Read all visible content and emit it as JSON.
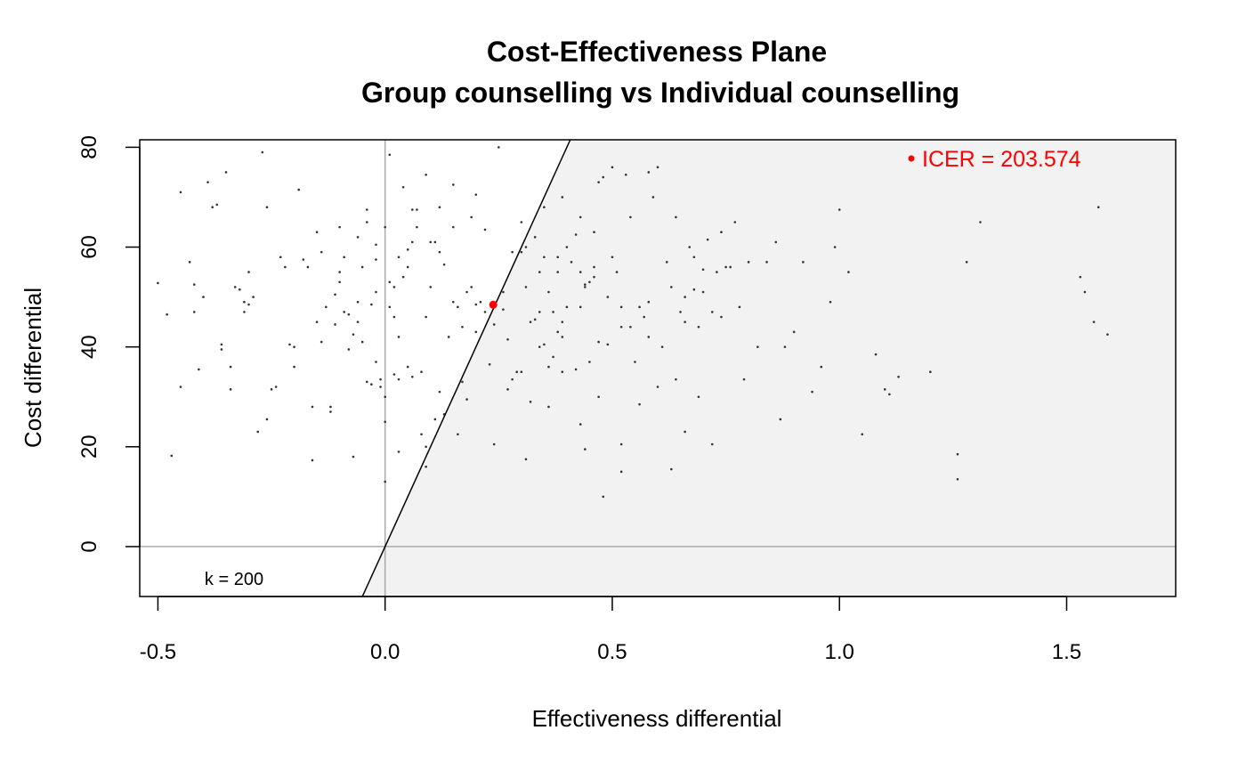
{
  "chart_data": {
    "type": "scatter",
    "title": "Cost-Effectiveness Plane",
    "subtitle": "Group counselling vs Individual counselling",
    "xlabel": "Effectiveness differential",
    "ylabel": "Cost differential",
    "xlim": [
      -0.54,
      1.74
    ],
    "ylim": [
      -10,
      81.5
    ],
    "xticks": [
      -0.5,
      0.0,
      0.5,
      1.0,
      1.5
    ],
    "xtick_labels": [
      "-0.5",
      "0.0",
      "0.5",
      "1.0",
      "1.5"
    ],
    "yticks": [
      0,
      20,
      40,
      60,
      80
    ],
    "ytick_labels": [
      "0",
      "20",
      "40",
      "60",
      "80"
    ],
    "grid": false,
    "wtp_line": {
      "k": 200,
      "label": "k = 200"
    },
    "acceptability_region_color": "#f2f2f2",
    "reference_line_color": "#aaaaaa",
    "point_color": "#333333",
    "icer": {
      "x": 0.238,
      "y": 48.45,
      "value": 203.574,
      "label": "ICER = 203.574",
      "color": "#ff0000"
    },
    "points": [
      [
        -0.5,
        52.8
      ],
      [
        -0.48,
        46.5
      ],
      [
        -0.47,
        18.2
      ],
      [
        -0.45,
        32
      ],
      [
        -0.45,
        71
      ],
      [
        -0.43,
        57
      ],
      [
        -0.42,
        52.5
      ],
      [
        -0.42,
        47
      ],
      [
        -0.41,
        35.5
      ],
      [
        -0.4,
        50
      ],
      [
        -0.39,
        73
      ],
      [
        -0.38,
        68
      ],
      [
        -0.37,
        68.5
      ],
      [
        -0.36,
        40.5
      ],
      [
        -0.36,
        39.5
      ],
      [
        -0.35,
        75
      ],
      [
        -0.34,
        31.5
      ],
      [
        -0.34,
        36
      ],
      [
        -0.33,
        52
      ],
      [
        -0.32,
        51.5
      ],
      [
        -0.31,
        47
      ],
      [
        -0.31,
        49
      ],
      [
        -0.3,
        48.5
      ],
      [
        -0.3,
        55
      ],
      [
        -0.29,
        50
      ],
      [
        -0.28,
        23
      ],
      [
        -0.27,
        79
      ],
      [
        -0.26,
        68
      ],
      [
        -0.26,
        25.5
      ],
      [
        -0.25,
        31.5
      ],
      [
        -0.24,
        32
      ],
      [
        -0.23,
        58
      ],
      [
        -0.22,
        56
      ],
      [
        -0.21,
        40.5
      ],
      [
        -0.2,
        40
      ],
      [
        -0.2,
        36
      ],
      [
        -0.19,
        71.5
      ],
      [
        -0.18,
        57.5
      ],
      [
        -0.17,
        56
      ],
      [
        -0.16,
        28
      ],
      [
        -0.16,
        17.3
      ],
      [
        -0.15,
        45
      ],
      [
        -0.15,
        63
      ],
      [
        -0.14,
        41
      ],
      [
        -0.13,
        48
      ],
      [
        -0.12,
        28
      ],
      [
        -0.12,
        27
      ],
      [
        -0.11,
        50.5
      ],
      [
        -0.11,
        44.5
      ],
      [
        -0.1,
        53
      ],
      [
        -0.1,
        55
      ],
      [
        -0.09,
        58
      ],
      [
        -0.09,
        47
      ],
      [
        -0.08,
        46.5
      ],
      [
        -0.08,
        39.5
      ],
      [
        -0.07,
        42.5
      ],
      [
        -0.07,
        18
      ],
      [
        -0.06,
        49
      ],
      [
        -0.06,
        45
      ],
      [
        -0.05,
        56
      ],
      [
        -0.05,
        41
      ],
      [
        -0.04,
        33
      ],
      [
        -0.04,
        65
      ],
      [
        -0.04,
        67.5
      ],
      [
        -0.03,
        48.5
      ],
      [
        -0.03,
        32.5
      ],
      [
        -0.02,
        37
      ],
      [
        -0.02,
        57.5
      ],
      [
        -0.01,
        33.5
      ],
      [
        -0.01,
        32
      ],
      [
        0.0,
        25
      ],
      [
        0.0,
        30
      ],
      [
        0.01,
        53
      ],
      [
        0.01,
        48
      ],
      [
        0.01,
        78.5
      ],
      [
        0.02,
        46
      ],
      [
        0.02,
        34.5
      ],
      [
        0.03,
        42
      ],
      [
        0.03,
        19
      ],
      [
        0.03,
        33.5
      ],
      [
        0.04,
        72
      ],
      [
        0.05,
        56
      ],
      [
        0.05,
        59.5
      ],
      [
        0.05,
        36
      ],
      [
        0.06,
        34
      ],
      [
        0.06,
        67.5
      ],
      [
        0.07,
        67.5
      ],
      [
        0.07,
        64
      ],
      [
        0.08,
        35
      ],
      [
        0.08,
        22.5
      ],
      [
        0.09,
        20
      ],
      [
        0.09,
        74.5
      ],
      [
        0.1,
        52
      ],
      [
        0.1,
        61
      ],
      [
        0.11,
        61
      ],
      [
        0.12,
        59
      ],
      [
        0.12,
        68
      ],
      [
        0.13,
        56.5
      ],
      [
        0.14,
        42
      ],
      [
        0.15,
        49
      ],
      [
        0.15,
        72.5
      ],
      [
        0.16,
        48
      ],
      [
        0.17,
        44
      ],
      [
        0.18,
        51
      ],
      [
        0.19,
        52
      ],
      [
        0.2,
        43
      ],
      [
        0.2,
        48.5
      ],
      [
        0.21,
        49
      ],
      [
        0.22,
        47
      ],
      [
        0.23,
        36.5
      ],
      [
        0.24,
        44.5
      ],
      [
        0.25,
        80
      ],
      [
        0.26,
        47.5
      ],
      [
        0.27,
        41.5
      ],
      [
        0.28,
        59
      ],
      [
        0.29,
        35
      ],
      [
        0.3,
        65
      ],
      [
        0.31,
        60
      ],
      [
        0.32,
        29
      ],
      [
        0.33,
        45.5
      ],
      [
        0.34,
        47
      ],
      [
        0.35,
        58
      ],
      [
        0.36,
        28
      ],
      [
        0.36,
        36
      ],
      [
        0.37,
        47
      ],
      [
        0.38,
        43
      ],
      [
        0.38,
        55
      ],
      [
        0.39,
        45
      ],
      [
        0.4,
        48
      ],
      [
        0.41,
        57
      ],
      [
        0.42,
        35.5
      ],
      [
        0.43,
        24.5
      ],
      [
        0.43,
        55
      ],
      [
        0.44,
        52
      ],
      [
        0.45,
        53
      ],
      [
        0.46,
        56
      ],
      [
        0.47,
        41
      ],
      [
        0.47,
        73
      ],
      [
        0.48,
        74
      ],
      [
        0.5,
        76
      ],
      [
        0.52,
        44
      ],
      [
        0.52,
        48
      ],
      [
        0.53,
        74.5
      ],
      [
        0.55,
        37
      ],
      [
        0.56,
        48
      ],
      [
        0.58,
        49
      ],
      [
        0.58,
        42
      ],
      [
        0.59,
        70
      ],
      [
        0.6,
        76
      ],
      [
        0.62,
        57
      ],
      [
        0.63,
        52
      ],
      [
        0.64,
        66
      ],
      [
        0.65,
        47
      ],
      [
        0.66,
        50
      ],
      [
        0.67,
        60
      ],
      [
        0.68,
        58
      ],
      [
        0.69,
        44
      ],
      [
        0.7,
        51
      ],
      [
        0.71,
        61.5
      ],
      [
        0.72,
        47
      ],
      [
        0.73,
        55
      ],
      [
        0.74,
        63
      ],
      [
        0.75,
        56
      ],
      [
        0.76,
        56
      ],
      [
        0.77,
        65
      ],
      [
        0.78,
        48
      ],
      [
        0.8,
        57
      ],
      [
        0.82,
        40
      ],
      [
        0.84,
        57
      ],
      [
        0.86,
        61
      ],
      [
        0.87,
        25.5
      ],
      [
        0.88,
        40
      ],
      [
        0.9,
        43
      ],
      [
        0.92,
        57
      ],
      [
        0.94,
        31
      ],
      [
        0.96,
        36
      ],
      [
        0.98,
        49
      ],
      [
        0.99,
        60
      ],
      [
        1.0,
        67.5
      ],
      [
        1.02,
        55
      ],
      [
        1.05,
        22.5
      ],
      [
        1.08,
        38.5
      ],
      [
        1.1,
        31.5
      ],
      [
        1.11,
        30.5
      ],
      [
        1.13,
        34
      ],
      [
        1.2,
        35
      ],
      [
        1.26,
        18.5
      ],
      [
        1.26,
        13.5
      ],
      [
        1.28,
        57
      ],
      [
        1.31,
        65
      ],
      [
        1.53,
        54
      ],
      [
        1.54,
        51
      ],
      [
        1.56,
        45
      ],
      [
        1.57,
        68
      ],
      [
        1.59,
        42.5
      ],
      [
        0.58,
        75
      ],
      [
        0.64,
        33.5
      ],
      [
        0.79,
        33.5
      ],
      [
        0.35,
        40.5
      ],
      [
        0.2,
        70.5
      ],
      [
        -0.02,
        51
      ],
      [
        0.09,
        46
      ],
      [
        0.26,
        51
      ],
      [
        0.17,
        33
      ],
      [
        0.24,
        20.5
      ],
      [
        0.31,
        17.5
      ],
      [
        0.39,
        35
      ],
      [
        0.44,
        19.5
      ],
      [
        0.48,
        10
      ],
      [
        0.52,
        15
      ],
      [
        0.63,
        15.5
      ],
      [
        0.66,
        23
      ],
      [
        0.72,
        20.5
      ],
      [
        0.56,
        28.5
      ],
      [
        0.47,
        30
      ],
      [
        0.6,
        32
      ],
      [
        0.69,
        30
      ],
      [
        0.52,
        20.5
      ],
      [
        0.18,
        29.5
      ],
      [
        0.16,
        22.5
      ],
      [
        0.13,
        26.5
      ],
      [
        0.11,
        25.5
      ],
      [
        0.09,
        16
      ],
      [
        0.0,
        13
      ],
      [
        0.12,
        31
      ],
      [
        0.28,
        33.5
      ],
      [
        0.3,
        35
      ],
      [
        0.34,
        40
      ],
      [
        0.37,
        38
      ],
      [
        0.39,
        42
      ],
      [
        0.27,
        31.5
      ],
      [
        0.32,
        45
      ],
      [
        0.43,
        48
      ],
      [
        0.45,
        37
      ],
      [
        0.49,
        40.5
      ],
      [
        0.54,
        44
      ],
      [
        0.57,
        46
      ],
      [
        0.61,
        40
      ],
      [
        0.66,
        45
      ],
      [
        0.68,
        51.5
      ],
      [
        0.7,
        55.5
      ],
      [
        0.74,
        46
      ],
      [
        0.31,
        52
      ],
      [
        0.34,
        55
      ],
      [
        0.36,
        51
      ],
      [
        0.38,
        58
      ],
      [
        0.4,
        60
      ],
      [
        0.42,
        62.5
      ],
      [
        0.44,
        52.5
      ],
      [
        0.46,
        54
      ],
      [
        0.49,
        50
      ],
      [
        0.51,
        55
      ],
      [
        0.35,
        68
      ],
      [
        0.39,
        70
      ],
      [
        0.43,
        66
      ],
      [
        0.46,
        63
      ],
      [
        0.5,
        58
      ],
      [
        0.54,
        66
      ],
      [
        0.33,
        62
      ],
      [
        0.3,
        59
      ],
      [
        0.22,
        63.5
      ],
      [
        0.19,
        66
      ],
      [
        0.15,
        64
      ],
      [
        0.06,
        61
      ],
      [
        0.04,
        54
      ],
      [
        0.02,
        52
      ],
      [
        -0.02,
        60.5
      ],
      [
        -0.06,
        62
      ],
      [
        -0.1,
        64
      ],
      [
        -0.14,
        59
      ],
      [
        0.0,
        64
      ],
      [
        0.03,
        58
      ]
    ]
  }
}
